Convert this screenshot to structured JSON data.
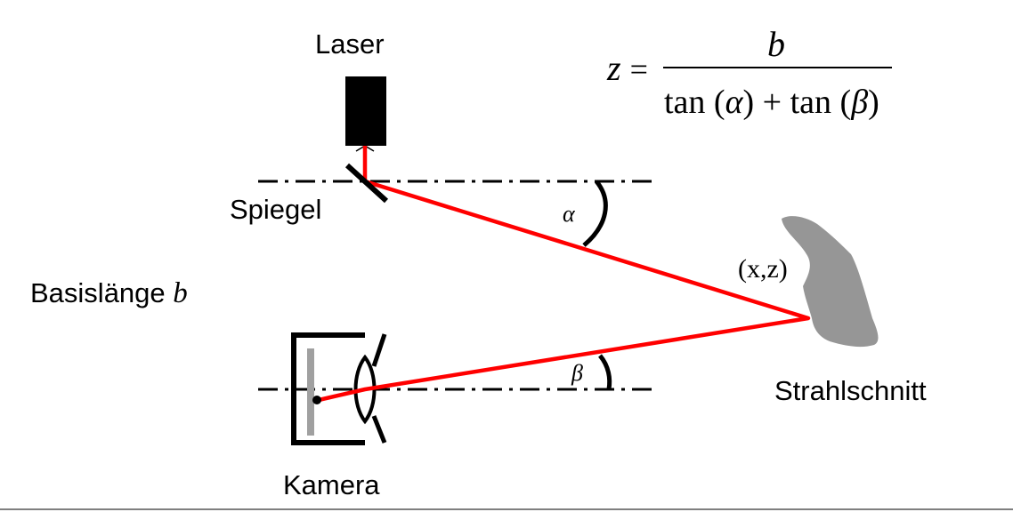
{
  "labels": {
    "laser": "Laser",
    "mirror": "Spiegel",
    "baseline": "Basislänge",
    "baseline_symbol": "b",
    "camera": "Kamera",
    "object": "Strahlschnitt",
    "point": "(x,z)",
    "alpha": "α",
    "beta": "β"
  },
  "formula": {
    "lhs": "z",
    "equals": "=",
    "numerator": "b",
    "denominator_part1": "tan (",
    "denominator_alpha": "α",
    "denominator_part2": ") + tan (",
    "denominator_beta": "β",
    "denominator_part3": ")"
  },
  "colors": {
    "beam": "#ff0000",
    "object_fill": "#969696",
    "sensor": "#a0a0a0",
    "ink": "#000000"
  }
}
